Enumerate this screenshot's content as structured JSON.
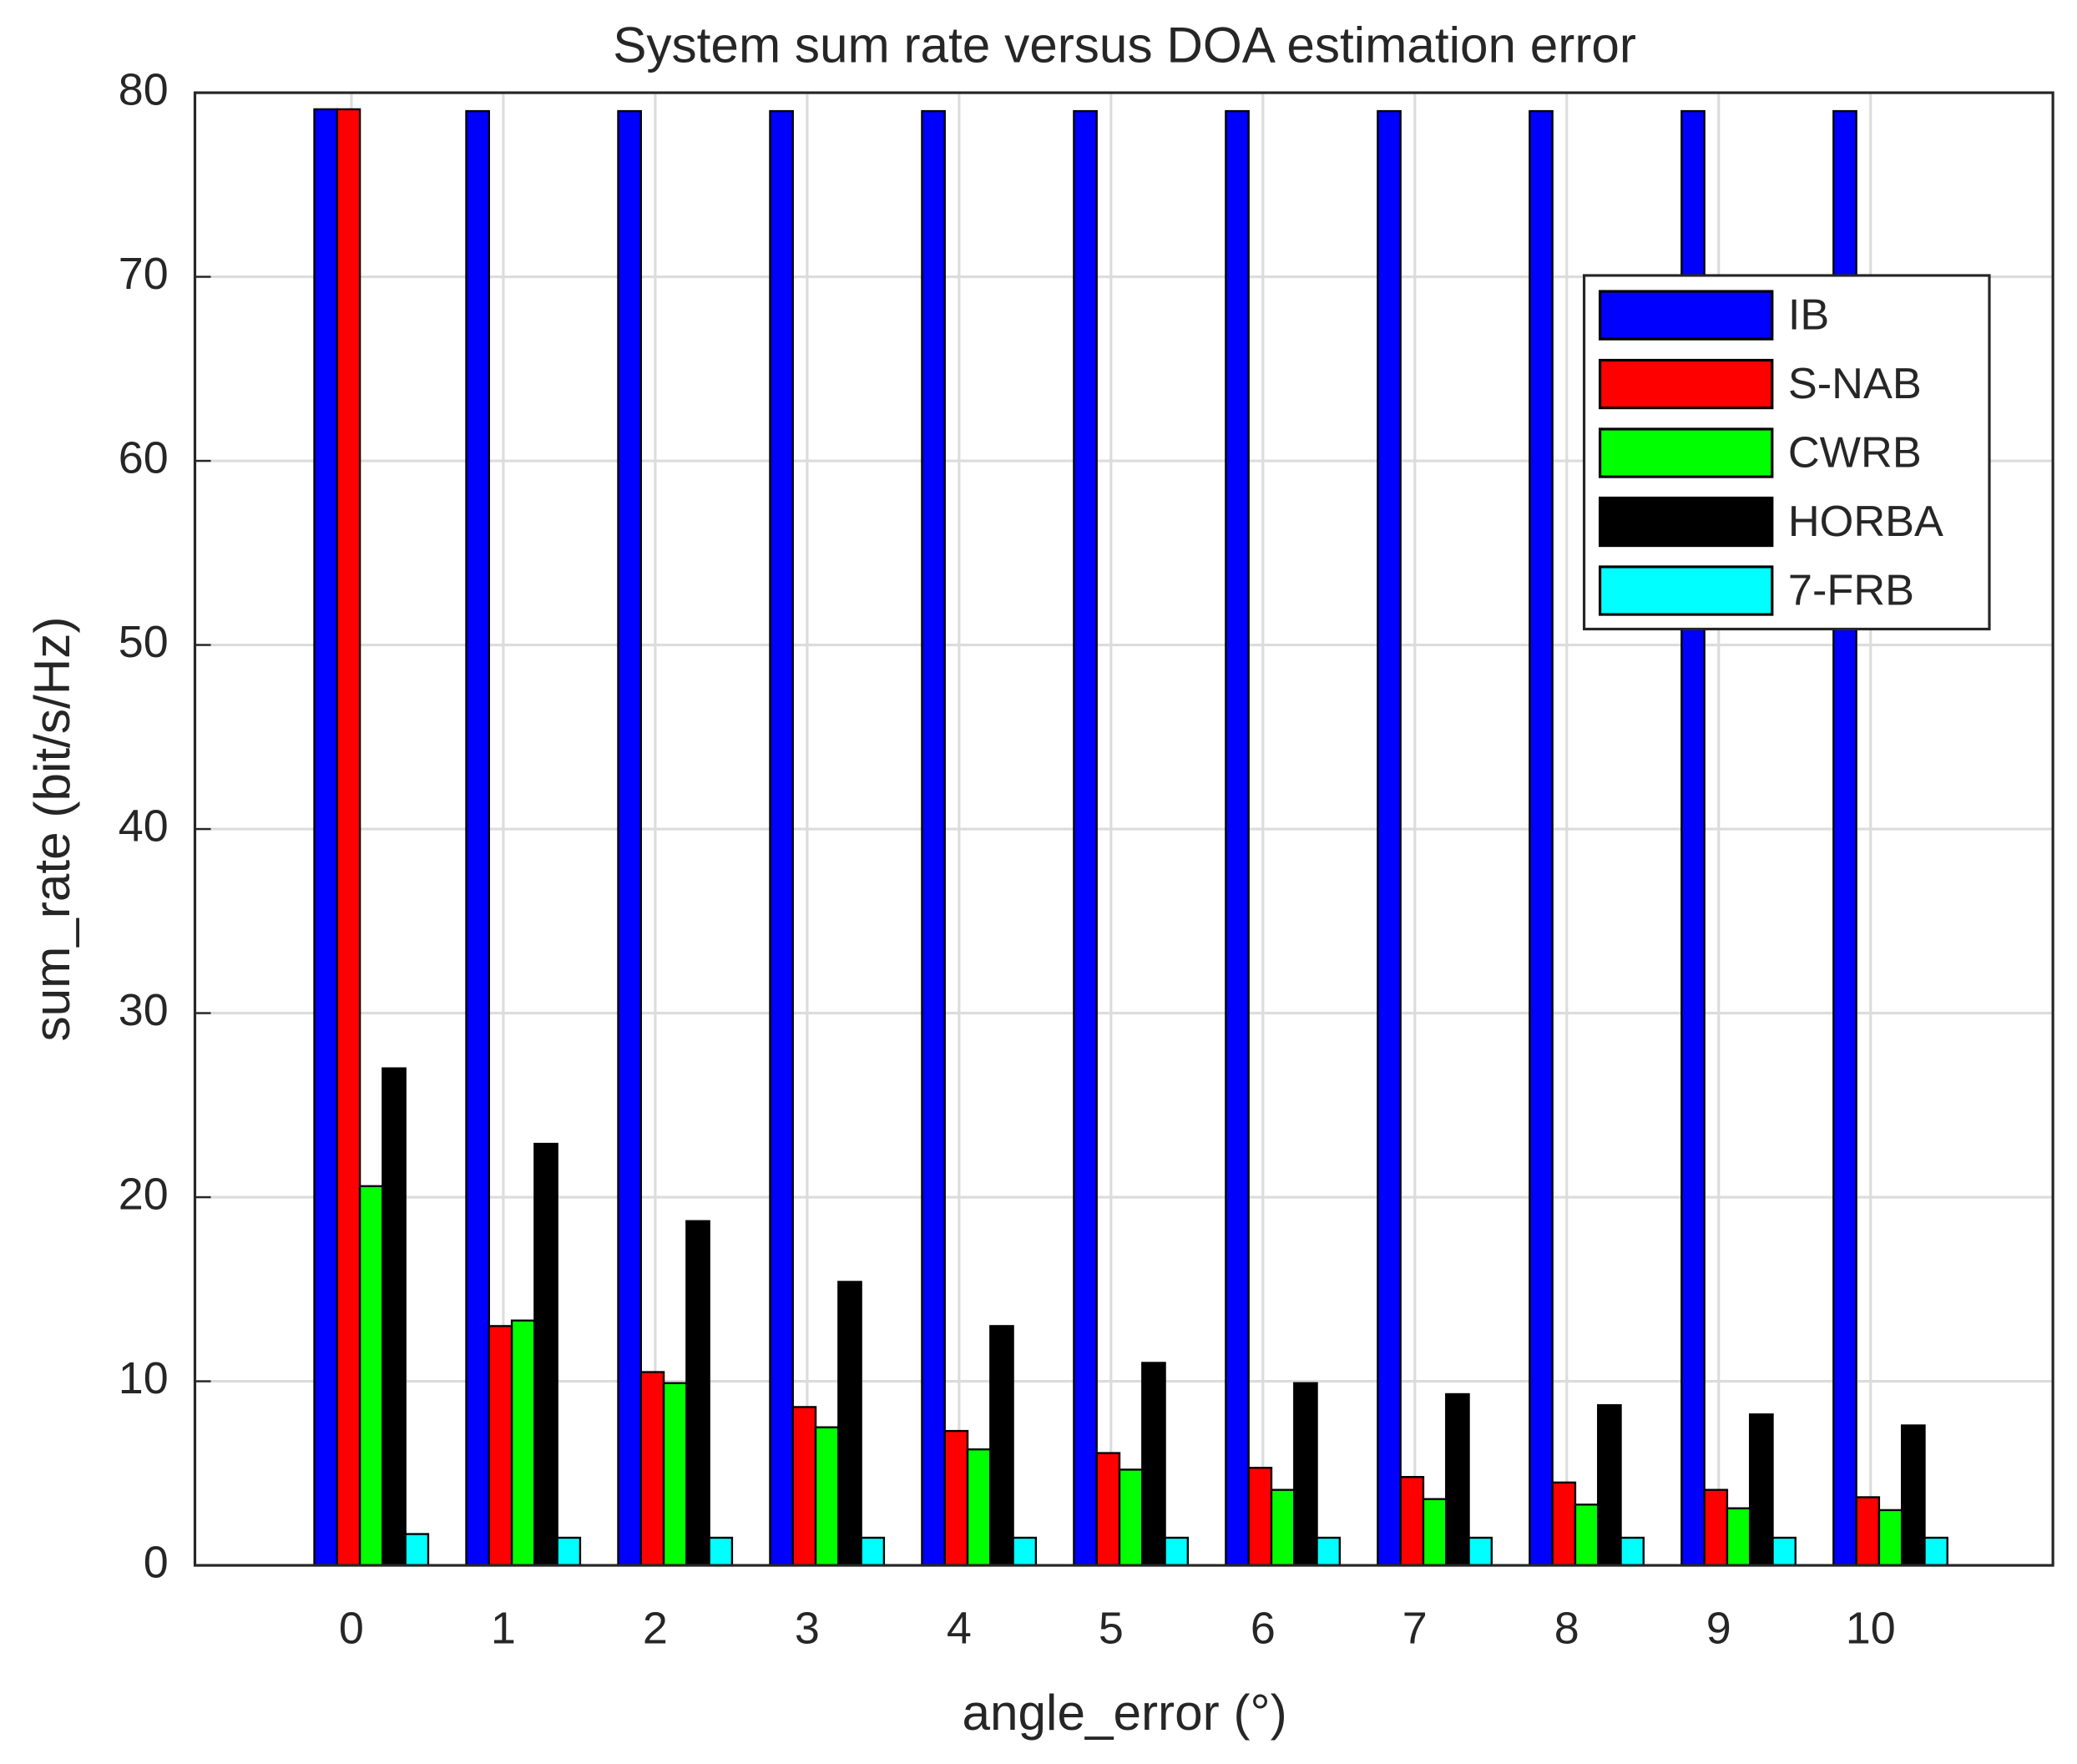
{
  "chart_data": {
    "type": "bar",
    "title": "System sum rate versus DOA estimation error",
    "x_label": "angle_error (°)",
    "y_label": "sum_rate (bit/s/Hz)",
    "x": [
      0,
      1,
      2,
      3,
      4,
      5,
      6,
      7,
      8,
      9,
      10
    ],
    "series": [
      {
        "name": "IB",
        "color": "#0000ff",
        "values": [
          79.1,
          79,
          79,
          79,
          79,
          79,
          79,
          79,
          79,
          79,
          79
        ]
      },
      {
        "name": "S-NAB",
        "color": "#ff0000",
        "values": [
          79.1,
          13,
          10.5,
          8.6,
          7.3,
          6.1,
          5.3,
          4.8,
          4.5,
          4.1,
          3.7
        ]
      },
      {
        "name": "CWRB",
        "color": "#00ff00",
        "values": [
          20.6,
          13.3,
          9.9,
          7.5,
          6.3,
          5.2,
          4.1,
          3.6,
          3.3,
          3.1,
          3.0
        ]
      },
      {
        "name": "HORBA",
        "color": "#000000",
        "values": [
          27,
          22.9,
          18.7,
          15.4,
          13,
          11,
          9.9,
          9.3,
          8.7,
          8.2,
          7.6
        ]
      },
      {
        "name": "7-FRB",
        "color": "#00ffff",
        "values": [
          1.7,
          1.5,
          1.5,
          1.5,
          1.5,
          1.5,
          1.5,
          1.5,
          1.5,
          1.5,
          1.5
        ]
      }
    ],
    "xlim": [
      -1.03,
      11.2
    ],
    "xticks": [
      0,
      1,
      2,
      3,
      4,
      5,
      6,
      7,
      8,
      9,
      10
    ],
    "ylim": [
      0,
      80
    ],
    "yticks": [
      0,
      10,
      20,
      30,
      40,
      50,
      60,
      70,
      80
    ],
    "grid": true,
    "legend": "upper right"
  }
}
